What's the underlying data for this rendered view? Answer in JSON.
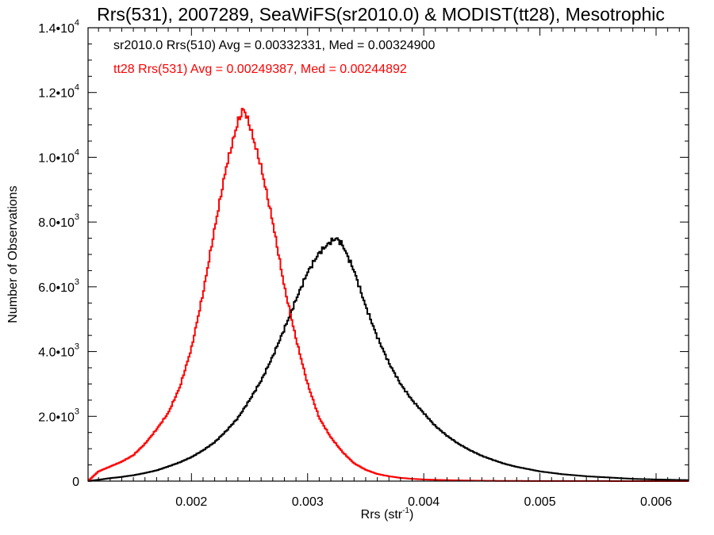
{
  "chart_data": {
    "type": "line",
    "title": "Rrs(531), 2007289, SeaWiFS(sr2010.0) & MODIST(tt28), Mesotrophic",
    "xlabel": "Rrs (str⁻¹)",
    "xlabel_main": "Rrs (str",
    "xlabel_sup": "-1",
    "xlabel_end": ")",
    "ylabel": "Number of Observations",
    "xlim": [
      0.00111,
      0.00628
    ],
    "ylim": [
      0,
      14000
    ],
    "x_ticks": [
      {
        "value": 0.002,
        "label": "0.002"
      },
      {
        "value": 0.003,
        "label": "0.003"
      },
      {
        "value": 0.004,
        "label": "0.004"
      },
      {
        "value": 0.005,
        "label": "0.005"
      },
      {
        "value": 0.006,
        "label": "0.006"
      }
    ],
    "y_ticks": [
      {
        "value": 0,
        "mantissa": "0",
        "exp": ""
      },
      {
        "value": 2000,
        "mantissa": "2.0•10",
        "exp": "3"
      },
      {
        "value": 4000,
        "mantissa": "4.0•10",
        "exp": "3"
      },
      {
        "value": 6000,
        "mantissa": "6.0•10",
        "exp": "3"
      },
      {
        "value": 8000,
        "mantissa": "8.0•10",
        "exp": "3"
      },
      {
        "value": 10000,
        "mantissa": "1.0•10",
        "exp": "4"
      },
      {
        "value": 12000,
        "mantissa": "1.2•10",
        "exp": "4"
      },
      {
        "value": 14000,
        "mantissa": "1.4•10",
        "exp": "4"
      }
    ],
    "grid": false,
    "legend_position": "top-left",
    "series": [
      {
        "name": "sr2010.0 Rrs(510) Avg = 0.00332331, Med = 0.00324900",
        "color": "#000000",
        "x": [
          0.00111,
          0.0012,
          0.0013,
          0.0014,
          0.0015,
          0.0016,
          0.0017,
          0.0018,
          0.0019,
          0.002,
          0.0021,
          0.0022,
          0.0023,
          0.0024,
          0.0025,
          0.0026,
          0.0027,
          0.0028,
          0.0029,
          0.003,
          0.0031,
          0.0032,
          0.00325,
          0.0033,
          0.0034,
          0.0035,
          0.0036,
          0.0037,
          0.0038,
          0.0039,
          0.004,
          0.0041,
          0.0042,
          0.0043,
          0.0044,
          0.0045,
          0.0046,
          0.0047,
          0.0048,
          0.0049,
          0.005,
          0.0052,
          0.0054,
          0.0056,
          0.0058,
          0.006,
          0.00628
        ],
        "y": [
          0,
          40,
          90,
          130,
          180,
          250,
          330,
          450,
          580,
          740,
          950,
          1200,
          1550,
          1950,
          2500,
          3100,
          3850,
          4700,
          5600,
          6450,
          7050,
          7400,
          7500,
          7300,
          6500,
          5400,
          4450,
          3650,
          3000,
          2500,
          2100,
          1700,
          1400,
          1150,
          950,
          780,
          650,
          530,
          440,
          370,
          300,
          210,
          150,
          110,
          70,
          50,
          30
        ]
      },
      {
        "name": "tt28 Rrs(531) Avg = 0.00249387, Med = 0.00244892",
        "color": "#ff0000",
        "x": [
          0.00111,
          0.0012,
          0.0013,
          0.0014,
          0.0015,
          0.0016,
          0.0017,
          0.0018,
          0.0019,
          0.002,
          0.0021,
          0.0022,
          0.0023,
          0.0024,
          0.00245,
          0.0025,
          0.0026,
          0.0027,
          0.0028,
          0.0029,
          0.003,
          0.0031,
          0.0032,
          0.0033,
          0.0034,
          0.0035,
          0.0036,
          0.0037,
          0.0038,
          0.0039,
          0.004,
          0.0042,
          0.0044,
          0.0046,
          0.0048,
          0.005,
          0.00628
        ],
        "y": [
          0,
          300,
          450,
          600,
          800,
          1150,
          1600,
          2100,
          2900,
          4100,
          5800,
          7800,
          9700,
          11100,
          11500,
          11000,
          9700,
          8000,
          6000,
          4400,
          3000,
          1950,
          1350,
          900,
          550,
          350,
          220,
          150,
          100,
          70,
          50,
          30,
          15,
          8,
          5,
          3,
          0
        ]
      }
    ]
  }
}
